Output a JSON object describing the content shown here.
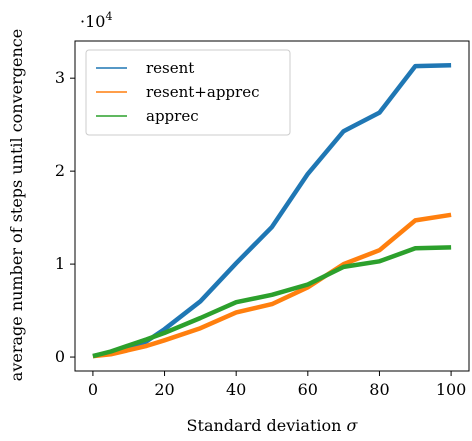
{
  "chart_data": {
    "type": "line",
    "x": [
      0,
      5,
      15,
      20,
      30,
      40,
      50,
      60,
      70,
      80,
      90,
      100
    ],
    "series": [
      {
        "name": "resent",
        "color": "#1f77b4",
        "values": [
          100,
          500,
          1700,
          3000,
          6000,
          10100,
          14000,
          19700,
          24300,
          26300,
          31300,
          31400
        ]
      },
      {
        "name": "resent+apprec",
        "color": "#ff7f0e",
        "values": [
          100,
          300,
          1200,
          1800,
          3100,
          4800,
          5700,
          7500,
          10000,
          11500,
          14700,
          15300
        ]
      },
      {
        "name": "apprec",
        "color": "#2ca02c",
        "values": [
          100,
          600,
          1900,
          2600,
          4200,
          5900,
          6700,
          7800,
          9700,
          10300,
          11700,
          11800
        ]
      }
    ],
    "xlabel_text": "Standard deviation ",
    "xlabel_symbol": "σ",
    "ylabel": "average number of steps until convergence",
    "offset_base": "·10",
    "offset_exp": "4",
    "xticks": [
      0,
      20,
      40,
      60,
      80,
      100
    ],
    "yticks": [
      0,
      1,
      2,
      3
    ],
    "ytick_scale": 10000,
    "xlim": [
      -5,
      105
    ],
    "ylim": [
      -1500,
      34000
    ],
    "grid": false,
    "legend_position": "upper-left"
  }
}
